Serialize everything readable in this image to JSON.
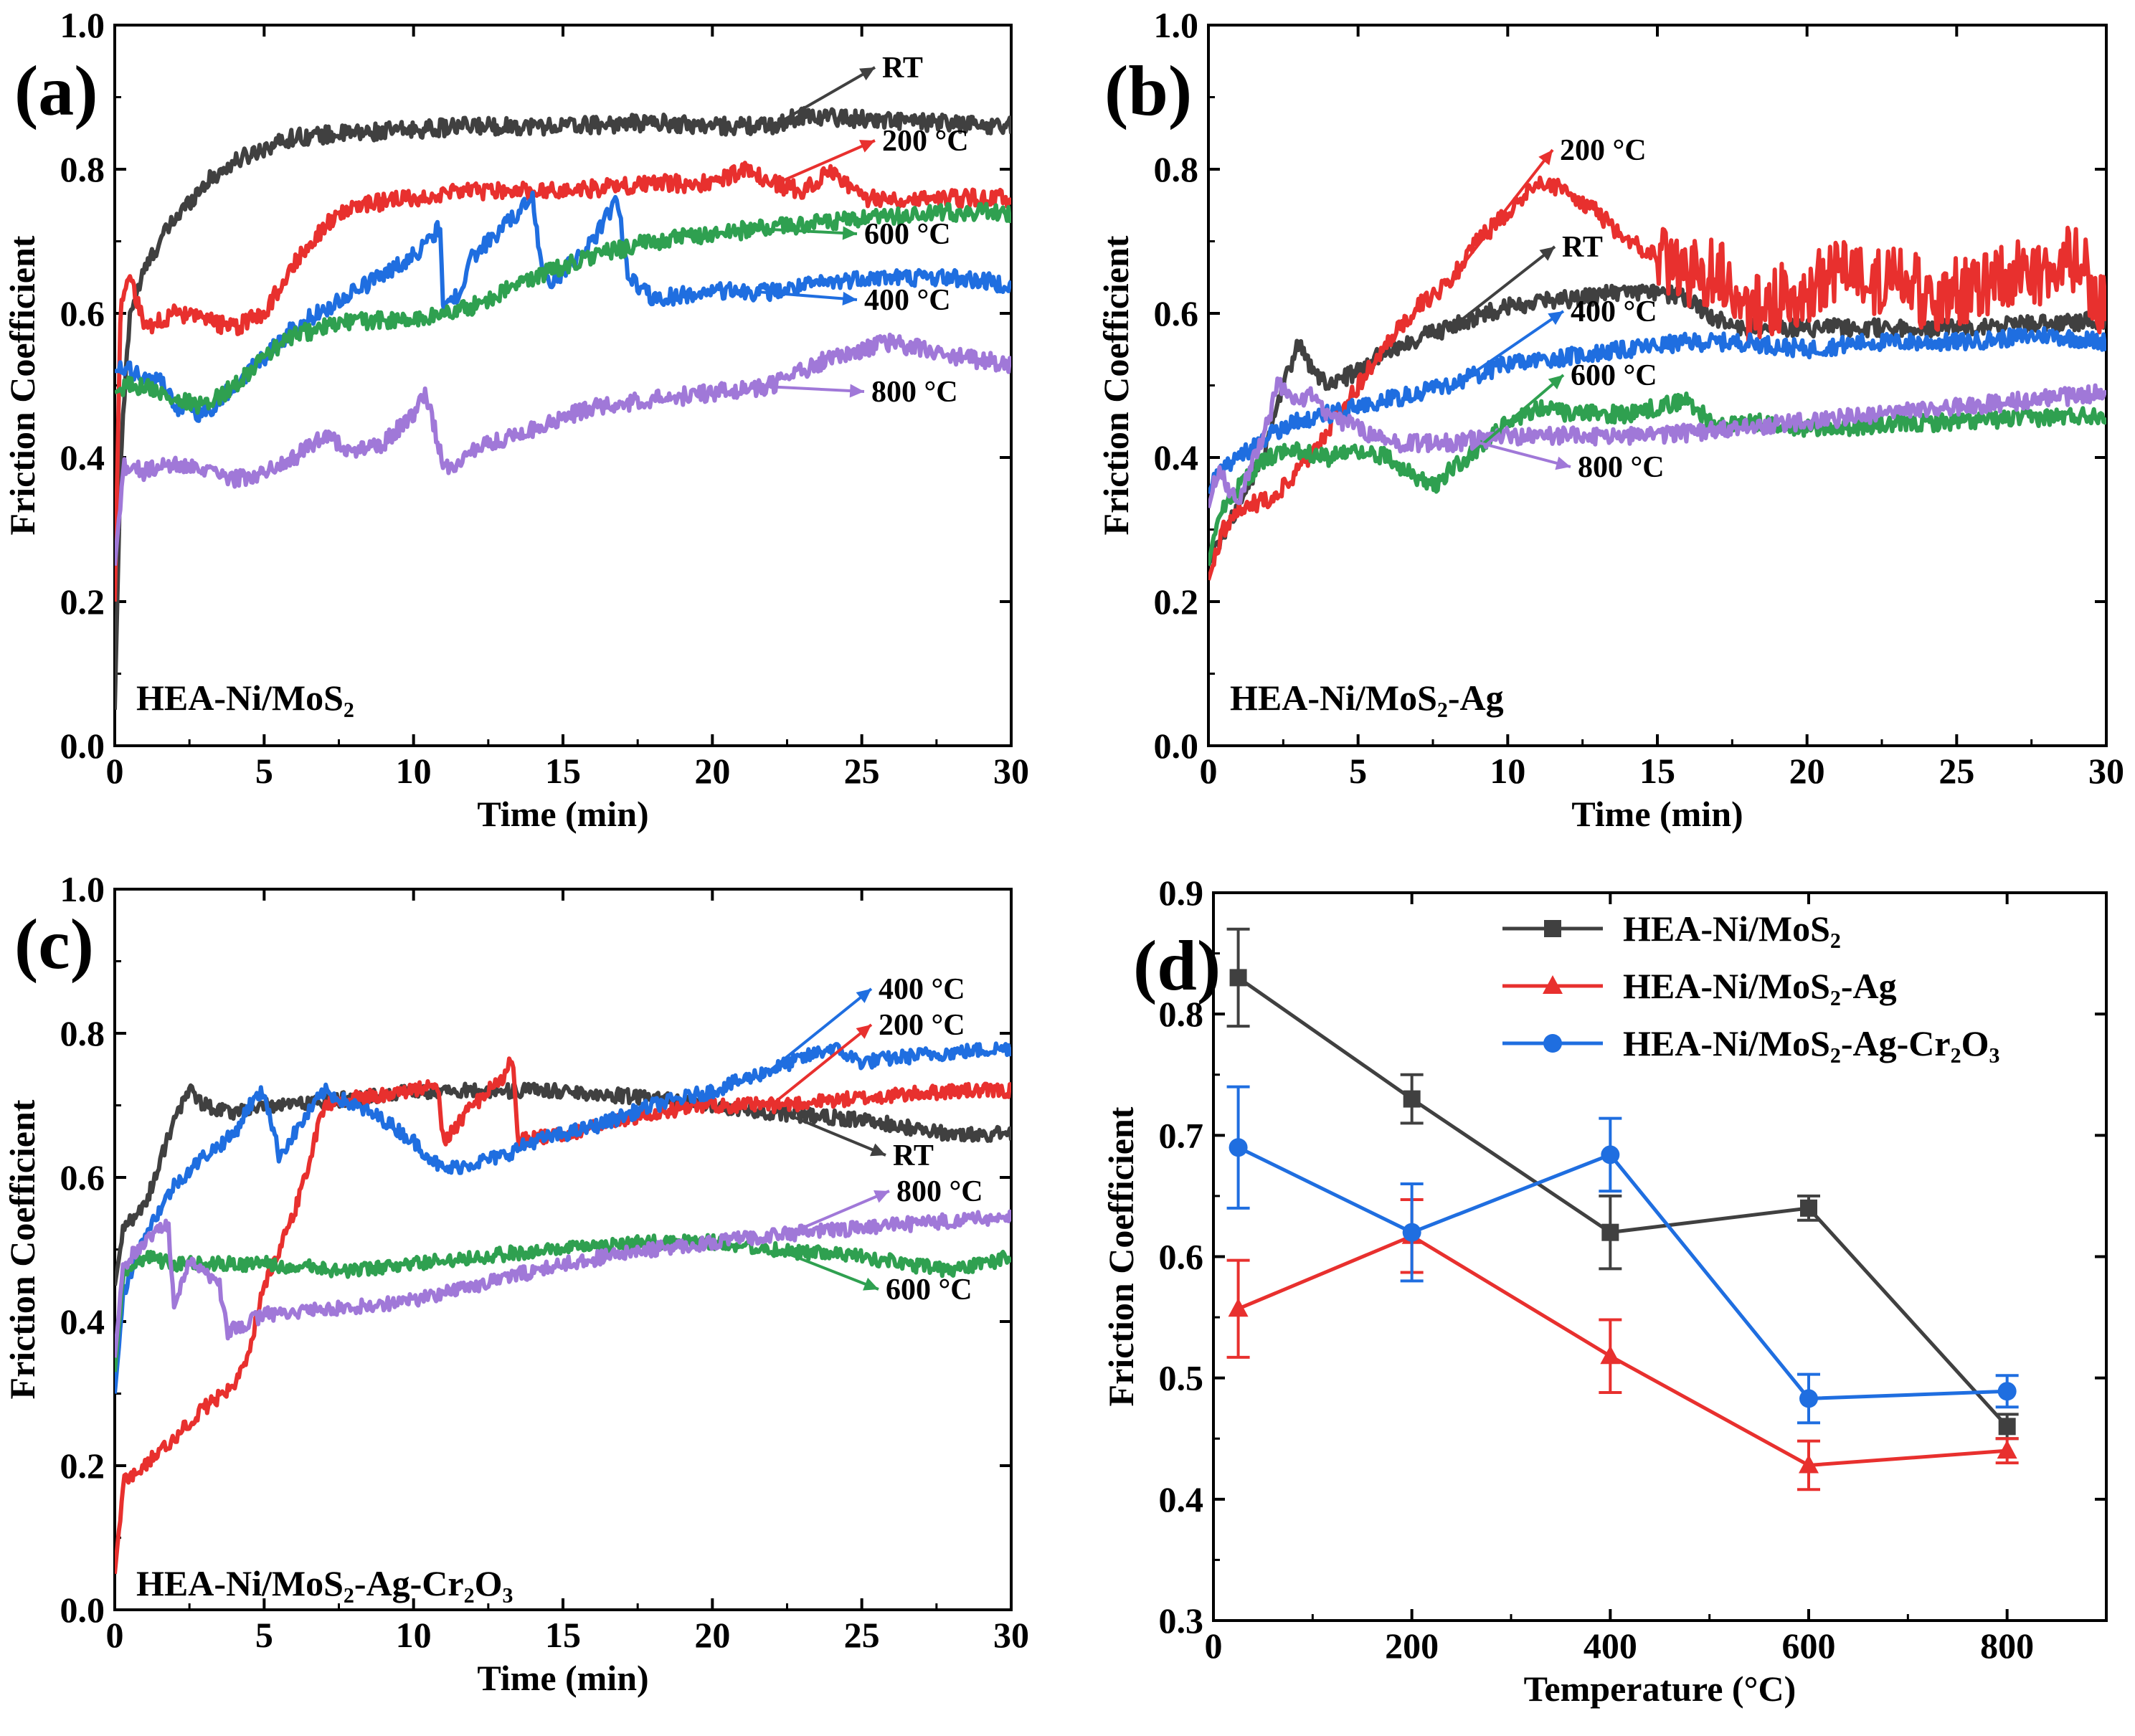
{
  "chart_data": [
    {
      "type": "line",
      "panel_label": "(a)",
      "sample_label": "HEA-Ni/MoS₂",
      "xlabel": "Time (min)",
      "ylabel": "Friction Coefficient",
      "xlim": [
        0,
        30
      ],
      "ylim": [
        0,
        1.0
      ],
      "xticks": [
        "0",
        "5",
        "10",
        "15",
        "20",
        "25",
        "30"
      ],
      "yticks": [
        "0.0",
        "0.2",
        "0.4",
        "0.6",
        "0.8",
        "1.0"
      ],
      "series": [
        {
          "name": "RT",
          "color": "#404040",
          "x": [
            0,
            0.2,
            0.5,
            1,
            1.5,
            2,
            3,
            4,
            5,
            6,
            8,
            10,
            12,
            15,
            18,
            20,
            22,
            23,
            25,
            27,
            30
          ],
          "y": [
            0.05,
            0.4,
            0.6,
            0.66,
            0.7,
            0.73,
            0.78,
            0.81,
            0.83,
            0.845,
            0.85,
            0.855,
            0.86,
            0.86,
            0.865,
            0.86,
            0.86,
            0.875,
            0.87,
            0.865,
            0.86
          ]
        },
        {
          "name": "200 °C",
          "color": "#e8302e",
          "x": [
            0,
            0.2,
            0.5,
            1,
            2,
            3,
            4,
            5,
            6,
            7,
            8,
            10,
            12,
            15,
            18,
            20,
            21,
            22,
            23,
            24,
            25,
            27,
            30
          ],
          "y": [
            0.2,
            0.62,
            0.65,
            0.58,
            0.6,
            0.59,
            0.58,
            0.6,
            0.67,
            0.72,
            0.75,
            0.76,
            0.77,
            0.77,
            0.78,
            0.78,
            0.8,
            0.78,
            0.77,
            0.8,
            0.76,
            0.76,
            0.76
          ]
        },
        {
          "name": "400 °C",
          "color": "#1f6ee0",
          "x": [
            0,
            0.5,
            1,
            1.5,
            2,
            3,
            4,
            5,
            6,
            8,
            10,
            10.9,
            11,
            11.5,
            12,
            13,
            14,
            14.2,
            14.6,
            15,
            16,
            16.8,
            17.2,
            18,
            20,
            22,
            25,
            28,
            30
          ],
          "y": [
            0.52,
            0.52,
            0.51,
            0.51,
            0.47,
            0.46,
            0.5,
            0.54,
            0.58,
            0.63,
            0.68,
            0.72,
            0.6,
            0.63,
            0.68,
            0.72,
            0.76,
            0.68,
            0.64,
            0.66,
            0.7,
            0.76,
            0.65,
            0.62,
            0.63,
            0.63,
            0.65,
            0.65,
            0.64
          ]
        },
        {
          "name": "600 °C",
          "color": "#2fa050",
          "x": [
            0,
            0.5,
            1,
            2,
            3,
            4,
            5,
            6,
            8,
            10,
            12,
            14,
            16,
            18,
            20,
            22,
            25,
            28,
            30
          ],
          "y": [
            0.49,
            0.5,
            0.5,
            0.48,
            0.47,
            0.5,
            0.54,
            0.57,
            0.59,
            0.59,
            0.61,
            0.65,
            0.68,
            0.7,
            0.71,
            0.72,
            0.73,
            0.74,
            0.74
          ]
        },
        {
          "name": "800 °C",
          "color": "#a078d8",
          "x": [
            0,
            0.3,
            1,
            2,
            3,
            4,
            5,
            6,
            7,
            8,
            9,
            10,
            10.4,
            11,
            11.5,
            12,
            14,
            16,
            18,
            20,
            22,
            24,
            25,
            26,
            28,
            30
          ],
          "y": [
            0.25,
            0.39,
            0.38,
            0.39,
            0.38,
            0.37,
            0.38,
            0.4,
            0.43,
            0.41,
            0.42,
            0.46,
            0.49,
            0.39,
            0.39,
            0.41,
            0.44,
            0.47,
            0.48,
            0.49,
            0.5,
            0.54,
            0.55,
            0.56,
            0.54,
            0.53
          ]
        }
      ],
      "annotations": [
        {
          "text": "RT",
          "series": 0
        },
        {
          "text": "200 °C",
          "series": 1
        },
        {
          "text": "600 °C",
          "series": 3
        },
        {
          "text": "400 °C",
          "series": 2
        },
        {
          "text": "800 °C",
          "series": 4
        }
      ]
    },
    {
      "type": "line",
      "panel_label": "(b)",
      "sample_label": "HEA-Ni/MoS₂-Ag",
      "xlabel": "Time (min)",
      "ylabel": "Friction Coefficient",
      "xlim": [
        0,
        30
      ],
      "ylim": [
        0,
        1.0
      ],
      "xticks": [
        "0",
        "5",
        "10",
        "15",
        "20",
        "25",
        "30"
      ],
      "yticks": [
        "0.0",
        "0.2",
        "0.4",
        "0.6",
        "0.8",
        "1.0"
      ],
      "series": [
        {
          "name": "RT",
          "color": "#404040",
          "x": [
            0,
            0.3,
            1,
            2,
            2.5,
            3,
            3.5,
            4,
            5,
            6,
            8,
            10,
            12,
            14,
            15,
            16,
            17,
            18,
            20,
            25,
            30
          ],
          "y": [
            0.25,
            0.28,
            0.33,
            0.42,
            0.5,
            0.56,
            0.52,
            0.5,
            0.52,
            0.55,
            0.58,
            0.61,
            0.62,
            0.63,
            0.63,
            0.62,
            0.59,
            0.58,
            0.58,
            0.58,
            0.59
          ]
        },
        {
          "name": "200 °C",
          "color": "#e8302e",
          "x": [
            0,
            0.5,
            1,
            2,
            3,
            4,
            5,
            6,
            7,
            8,
            9,
            10,
            11,
            12,
            13,
            14,
            15,
            16,
            17,
            18,
            19,
            20,
            21,
            22,
            23,
            24,
            25,
            26,
            27,
            28,
            29,
            30
          ],
          "y": [
            0.23,
            0.3,
            0.33,
            0.34,
            0.38,
            0.44,
            0.5,
            0.56,
            0.61,
            0.64,
            0.7,
            0.74,
            0.78,
            0.77,
            0.74,
            0.7,
            0.68,
            0.65,
            0.66,
            0.6,
            0.62,
            0.63,
            0.66,
            0.64,
            0.66,
            0.62,
            0.63,
            0.64,
            0.66,
            0.65,
            0.68,
            0.6
          ]
        },
        {
          "name": "400 °C",
          "color": "#1f6ee0",
          "x": [
            0,
            0.3,
            1,
            2,
            3,
            4,
            5,
            6,
            7,
            8,
            10,
            12,
            14,
            16,
            18,
            20,
            22,
            25,
            28,
            30
          ],
          "y": [
            0.35,
            0.38,
            0.4,
            0.43,
            0.45,
            0.46,
            0.47,
            0.48,
            0.49,
            0.5,
            0.53,
            0.54,
            0.55,
            0.56,
            0.56,
            0.55,
            0.56,
            0.56,
            0.57,
            0.56
          ]
        },
        {
          "name": "600 °C",
          "color": "#2fa050",
          "x": [
            0,
            0.3,
            1,
            2,
            3,
            4,
            5,
            6,
            7,
            7.5,
            8,
            9,
            10,
            11,
            12,
            14,
            16,
            16.5,
            17,
            18,
            20,
            25,
            30
          ],
          "y": [
            0.25,
            0.32,
            0.36,
            0.4,
            0.41,
            0.4,
            0.41,
            0.4,
            0.37,
            0.36,
            0.38,
            0.41,
            0.45,
            0.47,
            0.46,
            0.46,
            0.48,
            0.46,
            0.44,
            0.45,
            0.44,
            0.45,
            0.46
          ]
        },
        {
          "name": "800 °C",
          "color": "#a078d8",
          "x": [
            0,
            0.3,
            1,
            2,
            2.3,
            3,
            3.5,
            4,
            5,
            6,
            8,
            10,
            15,
            20,
            25,
            30
          ],
          "y": [
            0.33,
            0.38,
            0.34,
            0.45,
            0.5,
            0.48,
            0.49,
            0.46,
            0.44,
            0.42,
            0.42,
            0.43,
            0.43,
            0.45,
            0.47,
            0.49
          ]
        }
      ],
      "annotations": [
        {
          "text": "200 °C",
          "series": 1
        },
        {
          "text": "RT",
          "series": 0
        },
        {
          "text": "400 °C",
          "series": 2
        },
        {
          "text": "600 °C",
          "series": 3
        },
        {
          "text": "800 °C",
          "series": 4
        }
      ]
    },
    {
      "type": "line",
      "panel_label": "(c)",
      "sample_label": "HEA-Ni/MoS₂-Ag-Cr₂O₃",
      "xlabel": "Time (min)",
      "ylabel": "Friction Coefficient",
      "xlim": [
        0,
        30
      ],
      "ylim": [
        0,
        1.0
      ],
      "xticks": [
        "0",
        "5",
        "10",
        "15",
        "20",
        "25",
        "30"
      ],
      "yticks": [
        "0.0",
        "0.2",
        "0.4",
        "0.6",
        "0.8",
        "1.0"
      ],
      "series": [
        {
          "name": "RT",
          "color": "#404040",
          "x": [
            0,
            0.3,
            1,
            1.5,
            2,
            2.5,
            3,
            4,
            5,
            6,
            8,
            10,
            12,
            15,
            18,
            20,
            22,
            25,
            28,
            30
          ],
          "y": [
            0.45,
            0.53,
            0.56,
            0.62,
            0.68,
            0.72,
            0.7,
            0.69,
            0.7,
            0.7,
            0.71,
            0.72,
            0.72,
            0.72,
            0.71,
            0.7,
            0.69,
            0.68,
            0.66,
            0.66
          ]
        },
        {
          "name": "200 °C",
          "color": "#e8302e",
          "x": [
            0,
            0.3,
            1,
            2,
            3,
            4,
            4.5,
            5,
            6,
            6.5,
            7,
            8,
            10,
            10.8,
            11,
            12,
            13,
            13.3,
            13.5,
            15,
            18,
            20,
            22,
            25,
            28,
            30
          ],
          "y": [
            0.05,
            0.18,
            0.2,
            0.24,
            0.28,
            0.31,
            0.36,
            0.45,
            0.55,
            0.62,
            0.7,
            0.71,
            0.72,
            0.73,
            0.65,
            0.7,
            0.74,
            0.77,
            0.65,
            0.66,
            0.69,
            0.7,
            0.7,
            0.71,
            0.72,
            0.72
          ]
        },
        {
          "name": "400 °C",
          "color": "#1f6ee0",
          "x": [
            0,
            0.3,
            1,
            2,
            3,
            4,
            4.5,
            5,
            5.5,
            6,
            7,
            8,
            9,
            10,
            11,
            12,
            13,
            14,
            16,
            18,
            20,
            22,
            24,
            25,
            27,
            30
          ],
          "y": [
            0.3,
            0.44,
            0.52,
            0.59,
            0.63,
            0.66,
            0.7,
            0.72,
            0.63,
            0.66,
            0.72,
            0.7,
            0.68,
            0.65,
            0.61,
            0.62,
            0.63,
            0.65,
            0.67,
            0.7,
            0.72,
            0.75,
            0.78,
            0.76,
            0.77,
            0.78
          ]
        },
        {
          "name": "600 °C",
          "color": "#2fa050",
          "x": [
            0,
            0.3,
            1,
            2,
            3,
            5,
            8,
            10,
            12,
            15,
            18,
            20,
            22,
            25,
            28,
            30
          ],
          "y": [
            0.33,
            0.47,
            0.49,
            0.48,
            0.48,
            0.48,
            0.47,
            0.48,
            0.49,
            0.5,
            0.51,
            0.51,
            0.5,
            0.49,
            0.47,
            0.49
          ]
        },
        {
          "name": "800 °C",
          "color": "#a078d8",
          "x": [
            0,
            0.3,
            1,
            1.5,
            1.8,
            2,
            2.5,
            3,
            3.5,
            3.8,
            4,
            5,
            8,
            10,
            12,
            15,
            18,
            20,
            22,
            25,
            28,
            30
          ],
          "y": [
            0.35,
            0.48,
            0.51,
            0.53,
            0.53,
            0.42,
            0.48,
            0.47,
            0.45,
            0.38,
            0.39,
            0.41,
            0.42,
            0.43,
            0.45,
            0.48,
            0.5,
            0.51,
            0.52,
            0.53,
            0.54,
            0.545
          ]
        }
      ],
      "annotations": [
        {
          "text": "400 °C",
          "series": 2
        },
        {
          "text": "200 °C",
          "series": 1
        },
        {
          "text": "RT",
          "series": 0
        },
        {
          "text": "800 °C",
          "series": 4
        },
        {
          "text": "600 °C",
          "series": 3
        }
      ]
    },
    {
      "type": "line",
      "panel_label": "(d)",
      "xlabel": "Temperature (°C)",
      "ylabel": "Friction Coefficient",
      "xlim": [
        0,
        900
      ],
      "ylim": [
        0.3,
        0.9
      ],
      "xticks": [
        "0",
        "200",
        "400",
        "600",
        "800"
      ],
      "yticks": [
        "0.3",
        "0.4",
        "0.5",
        "0.6",
        "0.7",
        "0.8",
        "0.9"
      ],
      "x": [
        25,
        200,
        400,
        600,
        800
      ],
      "series": [
        {
          "name": "HEA-Ni/MoS₂",
          "color": "#404040",
          "marker": "square",
          "values": [
            0.83,
            0.73,
            0.62,
            0.64,
            0.46
          ],
          "errors": [
            0.04,
            0.02,
            0.03,
            0.01,
            0.01
          ]
        },
        {
          "name": "HEA-Ni/MoS₂-Ag",
          "color": "#e8302e",
          "marker": "triangle",
          "values": [
            0.557,
            0.617,
            0.518,
            0.428,
            0.44
          ],
          "errors": [
            0.04,
            0.03,
            0.03,
            0.02,
            0.01
          ]
        },
        {
          "name": "HEA-Ni/MoS₂-Ag-Cr₂O₃",
          "color": "#1f6ee0",
          "marker": "circle",
          "values": [
            0.69,
            0.62,
            0.684,
            0.483,
            0.489
          ],
          "errors": [
            0.05,
            0.04,
            0.03,
            0.02,
            0.013
          ]
        }
      ],
      "legend_position": "top-right"
    }
  ]
}
